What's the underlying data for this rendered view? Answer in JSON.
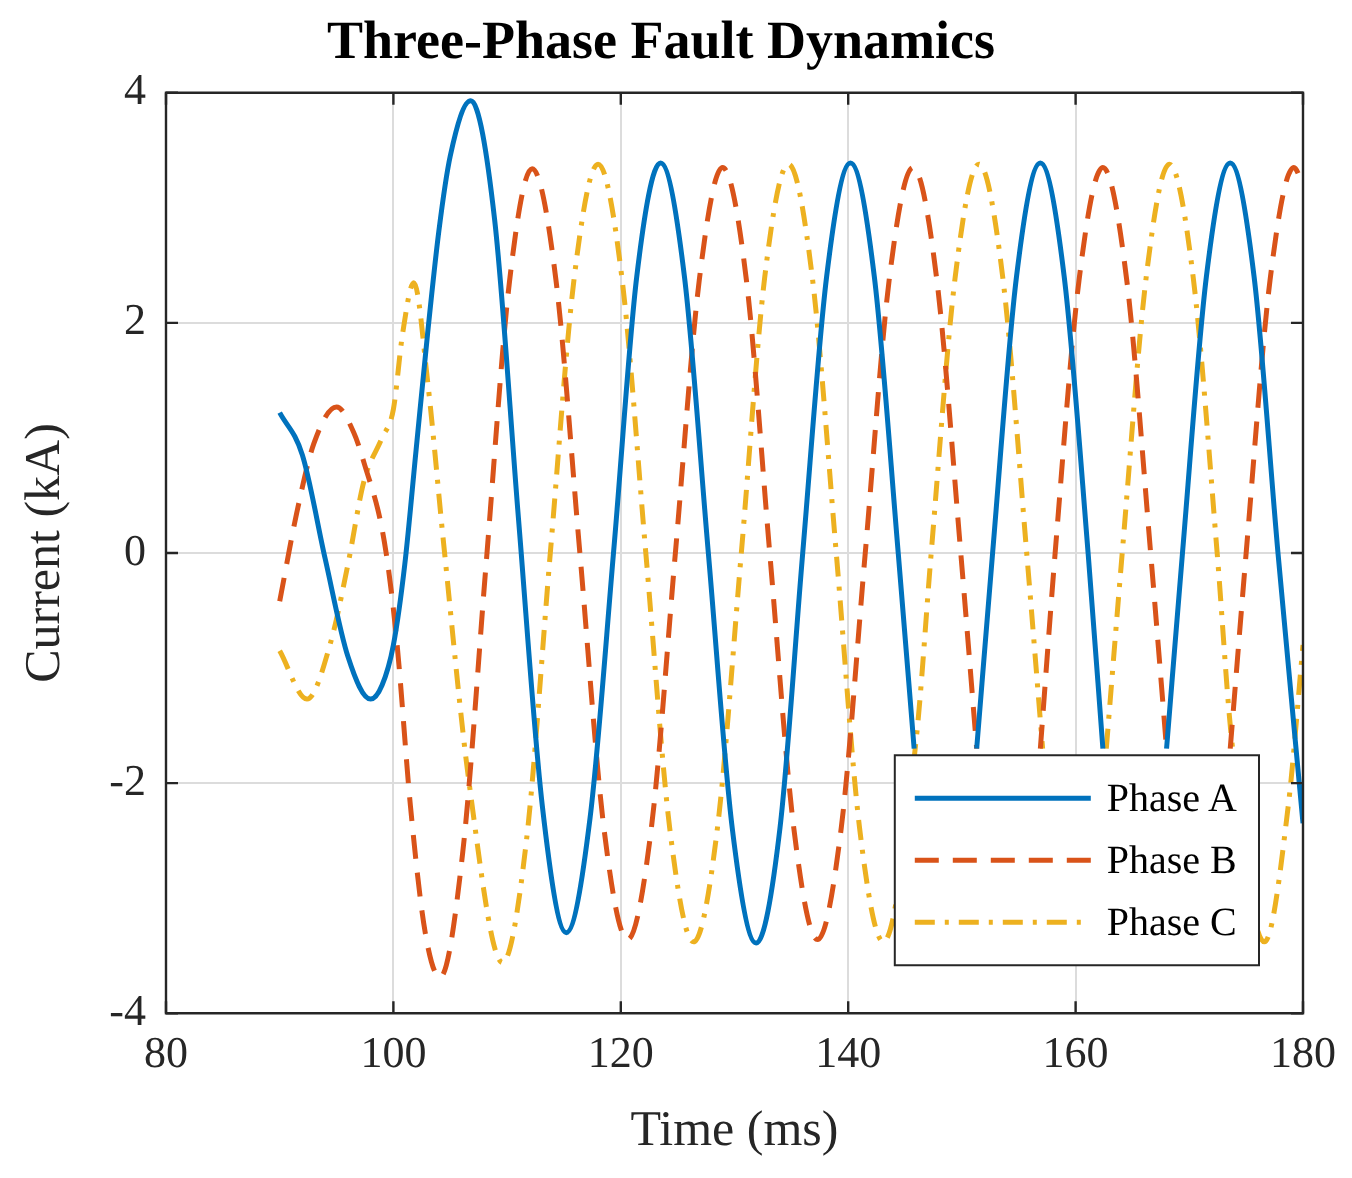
{
  "chart_data": {
    "type": "line",
    "title": "Three-Phase Fault Dynamics",
    "xlabel": "Time (ms)",
    "ylabel": "Current (kA)",
    "xlim": [
      80,
      180
    ],
    "xticks": [
      80,
      100,
      120,
      140,
      160,
      180
    ],
    "ylim": [
      -4,
      4
    ],
    "yticks": [
      -4,
      -2,
      0,
      2,
      4
    ],
    "grid": true,
    "legend": "bottom right",
    "marker": "none",
    "series": [
      {
        "name": "Phase A",
        "color": "#0072bd",
        "line_style": "solid",
        "x": [
          90,
          92,
          94,
          96,
          98,
          99,
          100,
          101,
          102,
          103,
          104,
          105,
          106.8,
          108.9,
          111,
          113.1,
          115.2,
          117.3,
          119.4,
          121.4,
          123.5,
          125.6,
          127.7,
          129.8,
          131.9,
          134,
          136,
          138.1,
          140.2,
          142.3,
          144.4,
          145.8,
          148.5,
          151.3,
          152.7,
          154.8,
          156.9,
          159,
          161.1,
          162.4,
          165.2,
          168,
          169.4,
          171.5,
          173.6,
          175.7,
          177.8,
          180
        ],
        "values": [
          1.22,
          0.85,
          -0.05,
          -0.9,
          -1.27,
          -1.15,
          -0.8,
          -0.1,
          0.9,
          1.9,
          2.8,
          3.45,
          3.93,
          2.9,
          0.3,
          -2.2,
          -3.3,
          -2.3,
          0.05,
          2.4,
          3.39,
          2.4,
          0,
          -2.39,
          -3.39,
          -2.39,
          0,
          2.4,
          3.39,
          2.4,
          0,
          -1.7,
          null,
          -1.7,
          0,
          2.4,
          3.39,
          2.4,
          0,
          -1.7,
          null,
          -1.7,
          0,
          2.4,
          3.39,
          2.4,
          0,
          -2.35
        ]
      },
      {
        "name": "Phase B",
        "color": "#d95319",
        "line_style": "dashed",
        "x": [
          90,
          91.5,
          93,
          95,
          96.5,
          97.4,
          99.2,
          100.3,
          101.5,
          102.8,
          104.1,
          106.1,
          108.15,
          110.2,
          112.2,
          114.3,
          116.4,
          118.5,
          120.6,
          122.7,
          124.8,
          126.9,
          128.95,
          131.05,
          133.1,
          135.2,
          137.3,
          139.4,
          141.5,
          143.6,
          145.7,
          147.8,
          149.9,
          151.3,
          154.1,
          156.9,
          158.2,
          160.3,
          162.4,
          164.5,
          166.6,
          168,
          170.8,
          173.6,
          175,
          177.1,
          179.2,
          180
        ],
        "values": [
          -0.42,
          0.35,
          0.95,
          1.27,
          1.05,
          0.79,
          0.1,
          -0.77,
          -2.2,
          -3.3,
          -3.69,
          -2.6,
          -0.1,
          2.35,
          3.34,
          2.37,
          0,
          -2.38,
          -3.36,
          -2.38,
          0,
          2.37,
          3.35,
          2.37,
          0,
          -2.38,
          -3.36,
          -2.38,
          0,
          2.37,
          3.35,
          2.37,
          0,
          -1.7,
          null,
          -1.7,
          0,
          2.37,
          3.35,
          2.37,
          0,
          -1.7,
          null,
          -1.7,
          0,
          2.37,
          3.35,
          3.2
        ]
      },
      {
        "name": "Phase C",
        "color": "#edb120",
        "line_style": "dashdot",
        "x": [
          90,
          92.4,
          94.5,
          96,
          97.4,
          99,
          100,
          100.8,
          101.8,
          103,
          104.4,
          106.7,
          109.6,
          111.7,
          113.8,
          115.9,
          118,
          120.1,
          122.2,
          124.3,
          126.4,
          128.5,
          130.6,
          132.65,
          134.75,
          136.85,
          138.95,
          141,
          143.1,
          146,
          147.3,
          149.4,
          151.5,
          153.6,
          155.7,
          157.1,
          159.9,
          162.7,
          164.1,
          166.2,
          168.25,
          170.35,
          172.45,
          173.7,
          176.6,
          178.7,
          180
        ],
        "values": [
          -0.85,
          -1.27,
          -0.77,
          -0.1,
          0.62,
          1.0,
          1.25,
          1.9,
          2.35,
          1.5,
          0.1,
          -2.03,
          -3.56,
          -2.5,
          0,
          2.39,
          3.38,
          2.39,
          0,
          -2.39,
          -3.38,
          -2.39,
          0,
          2.39,
          3.38,
          2.39,
          0,
          -2.39,
          -3.38,
          -1.6,
          0,
          2.39,
          3.38,
          2.39,
          0,
          -1.7,
          null,
          -1.7,
          0,
          2.39,
          3.38,
          2.39,
          0,
          -1.6,
          -3.38,
          -2.2,
          -0.8
        ]
      }
    ]
  }
}
